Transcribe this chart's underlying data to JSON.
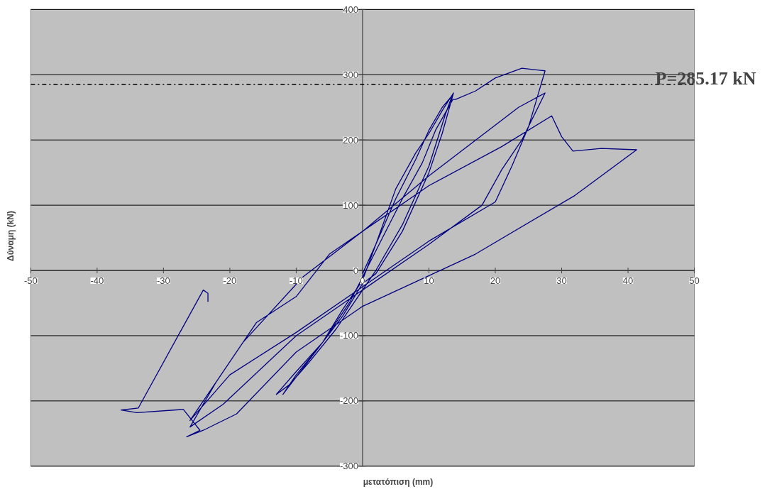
{
  "chart_data": {
    "type": "line",
    "xlabel": "μετατόπιση (mm)",
    "ylabel": "Δύναμη (kN)",
    "xlim": [
      -50,
      50
    ],
    "xticks": [
      -50,
      -40,
      -30,
      -20,
      -10,
      0,
      10,
      20,
      30,
      40,
      50
    ],
    "ylim": [
      -300,
      400
    ],
    "yticks": [
      -300,
      -200,
      -100,
      0,
      100,
      200,
      300,
      400
    ],
    "grid": "y",
    "marker": "none",
    "line_style": "solid",
    "ref_lines": [
      {
        "axis": "y",
        "value": 285.17,
        "label": "P=285.17 kN",
        "color": "#000000",
        "line_style": "dashdot"
      }
    ],
    "series": [
      {
        "color": "#000080",
        "x": [
          0,
          2,
          5,
          8,
          10,
          12,
          13.7,
          12,
          10,
          6,
          2,
          0,
          -3,
          -6,
          -9,
          -12,
          -10,
          -6,
          -3,
          0,
          2,
          5,
          8,
          10,
          12,
          13.5,
          12.5,
          10,
          6,
          2,
          0,
          -4,
          -8,
          -11,
          -13,
          -10,
          -6,
          -2,
          0,
          3,
          6,
          9,
          11,
          13.6,
          14,
          17,
          20,
          24,
          27.5,
          25,
          22.5,
          20,
          10,
          0,
          -10,
          -20,
          -26,
          -22,
          -18,
          -16,
          -10,
          -5,
          0,
          10,
          23.5,
          27.5,
          24,
          21,
          18,
          10,
          0,
          -10,
          -21,
          -26,
          -22,
          -18,
          -9,
          0,
          10,
          21,
          28.5,
          30,
          31.7,
          36,
          41.3,
          32,
          17,
          0,
          -10,
          -19,
          -22,
          -24,
          -26.5,
          -24.5,
          -27,
          -34,
          -36.4,
          -33.8,
          -24,
          -23.3,
          -23.3
        ],
        "values": [
          -5,
          40,
          125,
          180,
          210,
          245,
          272,
          210,
          150,
          60,
          -5,
          -20,
          -70,
          -110,
          -150,
          -190,
          -160,
          -110,
          -60,
          -15,
          40,
          110,
          170,
          215,
          250,
          268,
          240,
          160,
          70,
          0,
          -30,
          -90,
          -140,
          -175,
          -190,
          -155,
          -110,
          -50,
          -10,
          50,
          110,
          165,
          215,
          262,
          262,
          275,
          295,
          310,
          306,
          220,
          160,
          105,
          45,
          -25,
          -95,
          -160,
          -230,
          -170,
          -110,
          -80,
          -40,
          25,
          60,
          145,
          250,
          272,
          200,
          155,
          100,
          40,
          -30,
          -100,
          -205,
          -240,
          -170,
          -110,
          -10,
          60,
          130,
          190,
          237,
          205,
          183,
          187,
          185,
          115,
          25,
          -55,
          -125,
          -220,
          -235,
          -245,
          -255,
          -245,
          -213,
          -218,
          -214,
          -211,
          -30,
          -35,
          -48
        ]
      }
    ]
  }
}
